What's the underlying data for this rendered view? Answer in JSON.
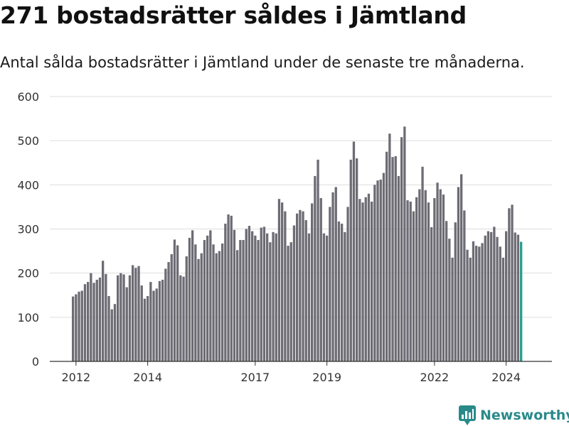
{
  "header": {
    "title": "271 bostadsrätter såldes i Jämtland",
    "subtitle": "Antal sålda bostadsrätter i Jämtland under de senaste tre månaderna."
  },
  "brand": {
    "name": "Newsworthy",
    "color": "#2a8a8a"
  },
  "colors": {
    "bar": "#6d6c74",
    "highlight": "#2a9d8f",
    "grid": "#dddddd",
    "axis": "#333333"
  },
  "chart_data": {
    "type": "bar",
    "xlabel": "",
    "ylabel": "",
    "ylim": [
      0,
      600
    ],
    "yticks": [
      "0",
      "100",
      "200",
      "300",
      "400",
      "500",
      "600"
    ],
    "xticks": [
      {
        "label": "2012",
        "index": 1
      },
      {
        "label": "2014",
        "index": 25
      },
      {
        "label": "2017",
        "index": 61
      },
      {
        "label": "2019",
        "index": 85
      },
      {
        "label": "2022",
        "index": 121
      },
      {
        "label": "2024",
        "index": 145
      }
    ],
    "annotation": {
      "label": "271",
      "index": 152
    },
    "grid": true,
    "values": [
      147,
      152,
      158,
      160,
      175,
      180,
      200,
      178,
      185,
      190,
      228,
      198,
      148,
      118,
      130,
      195,
      200,
      197,
      168,
      195,
      218,
      212,
      216,
      172,
      142,
      148,
      180,
      160,
      165,
      182,
      185,
      210,
      225,
      243,
      276,
      263,
      195,
      192,
      238,
      280,
      297,
      265,
      232,
      245,
      275,
      285,
      297,
      265,
      245,
      250,
      267,
      312,
      333,
      330,
      298,
      252,
      275,
      275,
      300,
      307,
      295,
      285,
      275,
      303,
      305,
      290,
      270,
      293,
      290,
      368,
      360,
      340,
      262,
      270,
      308,
      335,
      343,
      340,
      320,
      290,
      358,
      420,
      457,
      370,
      290,
      285,
      350,
      383,
      395,
      317,
      312,
      293,
      350,
      457,
      498,
      460,
      368,
      360,
      372,
      380,
      362,
      400,
      410,
      412,
      427,
      475,
      516,
      463,
      465,
      420,
      508,
      532,
      365,
      362,
      340,
      372,
      390,
      441,
      388,
      360,
      304,
      370,
      405,
      390,
      378,
      318,
      278,
      235,
      315,
      395,
      424,
      342,
      253,
      235,
      272,
      262,
      260,
      268,
      285,
      295,
      293,
      305,
      282,
      260,
      235,
      295,
      347,
      355,
      292,
      287,
      271
    ]
  }
}
